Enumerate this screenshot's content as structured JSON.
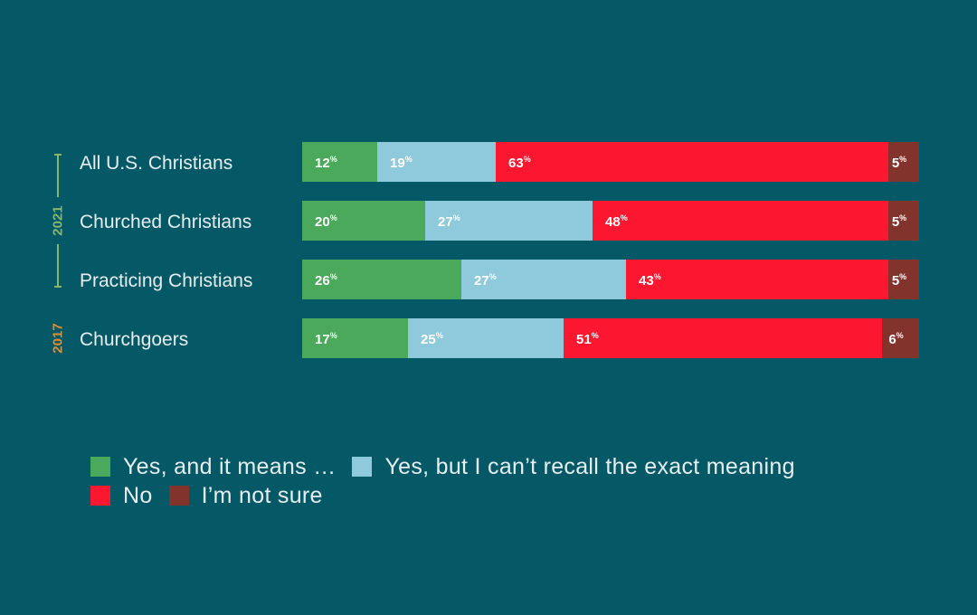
{
  "chart_data": {
    "type": "bar",
    "orientation": "horizontal",
    "stacked": true,
    "title": "",
    "xlabel": "",
    "ylabel": "",
    "xlim": [
      0,
      100
    ],
    "unit": "%",
    "categories": [
      "All U.S. Christians",
      "Churched Christians",
      "Practicing Christians",
      "Churchgoers"
    ],
    "groups": [
      {
        "label": "2021",
        "categories": [
          "All U.S. Christians",
          "Churched Christians",
          "Practicing Christians"
        ],
        "color": "#8ab56d"
      },
      {
        "label": "2017",
        "categories": [
          "Churchgoers"
        ],
        "color": "#e98b2a"
      }
    ],
    "series": [
      {
        "name": "Yes, and it means …",
        "color": "#4aa95a",
        "values": [
          12,
          20,
          26,
          17
        ]
      },
      {
        "name": "Yes, but I can’t recall the exact meaning",
        "color": "#8ecadb",
        "values": [
          19,
          27,
          27,
          25
        ]
      },
      {
        "name": "No",
        "color": "#fc1730",
        "values": [
          63,
          48,
          43,
          51
        ]
      },
      {
        "name": "I’m not sure",
        "color": "#82332c",
        "values": [
          5,
          5,
          5,
          6
        ]
      }
    ],
    "legend_position": "bottom-left",
    "grid": false
  }
}
